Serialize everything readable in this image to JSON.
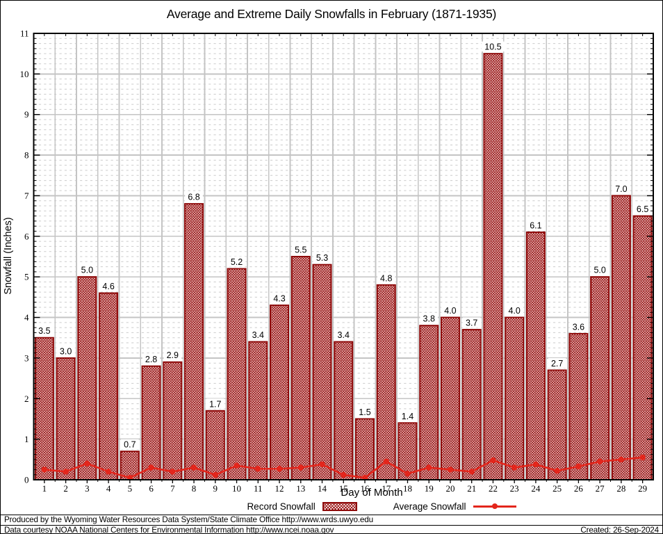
{
  "title": "Average and Extreme Daily Snowfalls in February (1871-1935)",
  "chart_data": {
    "type": "bar",
    "title": "Average and Extreme Daily Snowfalls in February (1871-1935)",
    "xlabel": "Day of Month",
    "ylabel": "Snowfall (Inches)",
    "ylim": [
      0,
      11
    ],
    "y_major_step": 1,
    "y_minor_step": 0.125,
    "grid": true,
    "legend_position": "bottom",
    "categories": [
      1,
      2,
      3,
      4,
      5,
      6,
      7,
      8,
      9,
      10,
      11,
      12,
      13,
      14,
      15,
      16,
      17,
      18,
      19,
      20,
      21,
      22,
      23,
      24,
      25,
      26,
      27,
      28,
      29
    ],
    "series": [
      {
        "name": "Record Snowfall",
        "type": "bar",
        "color": "#8e0a0a",
        "values": [
          3.5,
          3.0,
          5.0,
          4.6,
          0.7,
          2.8,
          2.9,
          6.8,
          1.7,
          5.2,
          3.4,
          4.3,
          5.5,
          5.3,
          3.4,
          1.5,
          4.8,
          1.4,
          3.8,
          4.0,
          3.7,
          10.5,
          4.0,
          6.1,
          2.7,
          3.6,
          5.0,
          7.0,
          6.5
        ]
      },
      {
        "name": "Average Snowfall",
        "type": "line",
        "color": "#e3261c",
        "values": [
          0.25,
          0.2,
          0.4,
          0.2,
          0.05,
          0.3,
          0.2,
          0.3,
          0.12,
          0.35,
          0.27,
          0.27,
          0.3,
          0.38,
          0.12,
          0.05,
          0.45,
          0.15,
          0.3,
          0.25,
          0.2,
          0.48,
          0.3,
          0.38,
          0.22,
          0.33,
          0.45,
          0.5,
          0.55
        ]
      }
    ]
  },
  "colors": {
    "bar_border": "#8e0a0a",
    "bar_hatch": "#9a1212",
    "line": "#e3261c",
    "grid_major": "#c4c4c4",
    "grid_minor": "#cbcbcb",
    "axis": "#000000"
  },
  "footer": {
    "line1": "Produced by the Wyoming Water Resources Data System/State Climate Office http://www.wrds.uwyo.edu",
    "line2": "Data courtesy NOAA National Centers for Environmental Information http://www.ncei.noaa.gov",
    "created": "Created: 26-Sep-2024"
  }
}
